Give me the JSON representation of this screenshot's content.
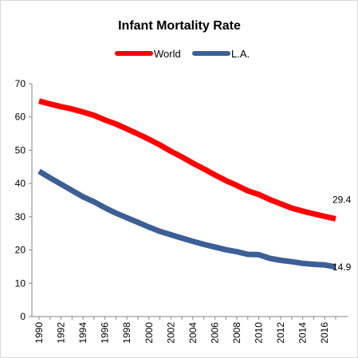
{
  "chart_data": {
    "type": "line",
    "title": "Infant Mortality Rate",
    "xlabel": "",
    "ylabel": "",
    "x": [
      1990,
      1991,
      1992,
      1993,
      1994,
      1995,
      1996,
      1997,
      1998,
      1999,
      2000,
      2001,
      2002,
      2003,
      2004,
      2005,
      2006,
      2007,
      2008,
      2009,
      2010,
      2011,
      2012,
      2013,
      2014,
      2015,
      2016,
      2017
    ],
    "xticks": [
      "1990",
      "1992",
      "1994",
      "1996",
      "1998",
      "2000",
      "2002",
      "2004",
      "2006",
      "2008",
      "2010",
      "2012",
      "2014",
      "2016"
    ],
    "ylim": [
      0,
      70
    ],
    "yticks": [
      "0",
      "10",
      "20",
      "30",
      "40",
      "50",
      "60",
      "70"
    ],
    "grid": false,
    "legend_position": "top",
    "series": [
      {
        "name": "World",
        "color": "#ff0000",
        "values": [
          64.8,
          63.9,
          63.1,
          62.4,
          61.5,
          60.5,
          59.1,
          57.9,
          56.4,
          54.9,
          53.3,
          51.6,
          49.7,
          48.0,
          46.1,
          44.4,
          42.6,
          40.9,
          39.4,
          37.8,
          36.7,
          35.2,
          33.9,
          32.6,
          31.7,
          30.9,
          30.1,
          29.4
        ],
        "end_label": "29.4"
      },
      {
        "name": "L.A.",
        "color": "#3c5f95",
        "values": [
          43.7,
          41.7,
          39.8,
          37.9,
          36.0,
          34.5,
          32.7,
          31.1,
          29.7,
          28.3,
          26.9,
          25.6,
          24.6,
          23.6,
          22.6,
          21.7,
          20.9,
          20.1,
          19.5,
          18.7,
          18.6,
          17.5,
          16.9,
          16.5,
          16.0,
          15.7,
          15.5,
          14.9
        ],
        "end_label": "14.9"
      }
    ]
  }
}
